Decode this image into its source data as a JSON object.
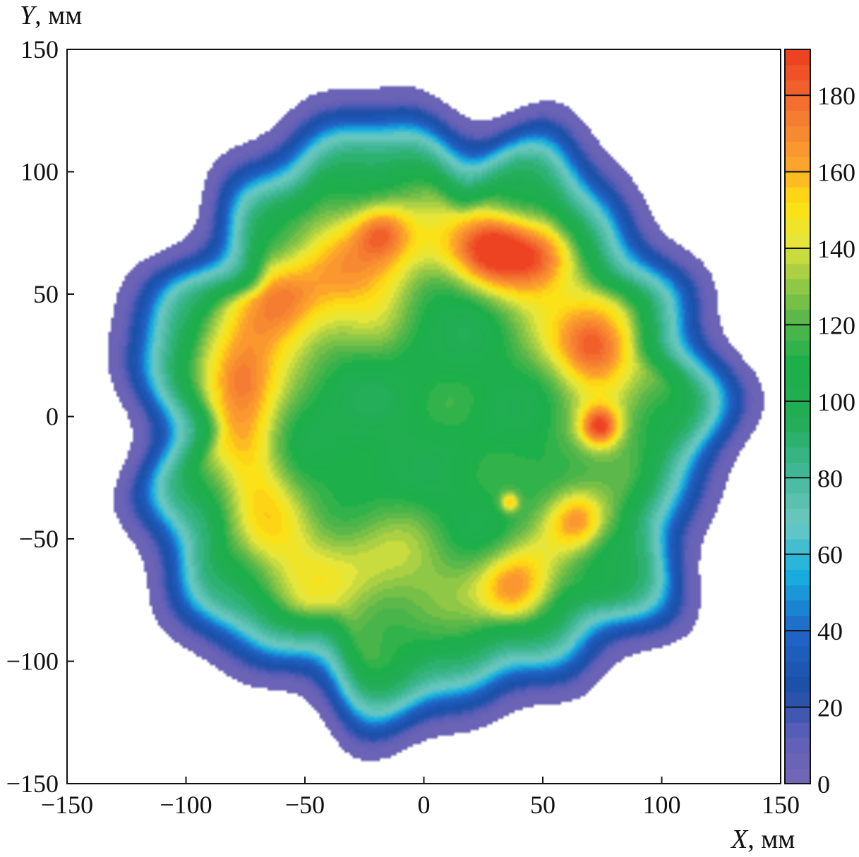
{
  "chart_data": {
    "type": "heatmap",
    "title": "",
    "xlabel": {
      "var": "X",
      "unit": ", мм"
    },
    "ylabel": {
      "var": "Y",
      "unit": ", мм"
    },
    "xlim": [
      -150,
      150
    ],
    "ylim": [
      -150,
      150
    ],
    "xticks": [
      "−150",
      "−100",
      "−50",
      "0",
      "50",
      "100",
      "150"
    ],
    "yticks": [
      "−150",
      "−100",
      "−50",
      "0",
      "50",
      "100",
      "150"
    ],
    "colorbar": {
      "range": [
        0,
        192
      ],
      "ticks": [
        "0",
        "20",
        "40",
        "60",
        "80",
        "100",
        "120",
        "140",
        "160",
        "180"
      ],
      "tick_values": [
        0,
        20,
        40,
        60,
        80,
        100,
        120,
        140,
        160,
        180
      ],
      "colors": [
        {
          "value": 0,
          "color": "#7467b4"
        },
        {
          "value": 12,
          "color": "#5f5fb8"
        },
        {
          "value": 25,
          "color": "#1c4fa8"
        },
        {
          "value": 40,
          "color": "#1f66c8"
        },
        {
          "value": 55,
          "color": "#16b0e0"
        },
        {
          "value": 68,
          "color": "#6ec9c3"
        },
        {
          "value": 82,
          "color": "#3fb795"
        },
        {
          "value": 95,
          "color": "#22ad55"
        },
        {
          "value": 110,
          "color": "#1daf4a"
        },
        {
          "value": 122,
          "color": "#5cb84a"
        },
        {
          "value": 132,
          "color": "#9ccb46"
        },
        {
          "value": 142,
          "color": "#e6e63a"
        },
        {
          "value": 152,
          "color": "#ffe010"
        },
        {
          "value": 162,
          "color": "#fca42c"
        },
        {
          "value": 175,
          "color": "#f47a32"
        },
        {
          "value": 190,
          "color": "#ee4323"
        }
      ]
    },
    "field": {
      "boundary_radius_mm": 133,
      "outer_band_value": 7,
      "blue_band_value": 28,
      "cyan_band_value": 62,
      "light_band_value": 85,
      "ring_radius_mm": 72,
      "ring_peak_value": 155,
      "core_value": 104,
      "hotspots": [
        {
          "x": 30,
          "y": 72,
          "value": 184,
          "r": 16
        },
        {
          "x": 72,
          "y": 28,
          "value": 178,
          "r": 16
        },
        {
          "x": 50,
          "y": 66,
          "value": 172,
          "r": 14
        },
        {
          "x": -18,
          "y": 76,
          "value": 168,
          "r": 11
        },
        {
          "x": 74,
          "y": -4,
          "value": 180,
          "r": 8
        },
        {
          "x": -78,
          "y": 15,
          "value": 160,
          "r": 14
        },
        {
          "x": 38,
          "y": -72,
          "value": 168,
          "r": 15
        },
        {
          "x": 65,
          "y": -42,
          "value": 160,
          "r": 12
        },
        {
          "x": -60,
          "y": 50,
          "value": 152,
          "r": 12
        },
        {
          "x": 36,
          "y": -35,
          "value": 160,
          "r": 4
        }
      ]
    }
  }
}
